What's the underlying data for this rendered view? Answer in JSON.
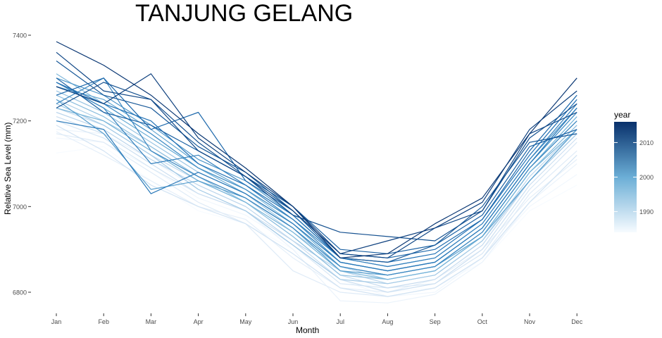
{
  "chart_data": {
    "type": "line",
    "title": "TANJUNG GELANG",
    "xlabel": "Month",
    "ylabel": "Relative Sea Level (mm)",
    "categories": [
      "Jan",
      "Feb",
      "Mar",
      "Apr",
      "May",
      "Jun",
      "Jul",
      "Aug",
      "Sep",
      "Oct",
      "Nov",
      "Dec"
    ],
    "ylim": [
      6740,
      7415
    ],
    "yticks": [
      6800,
      7000,
      7200,
      7400
    ],
    "grid": false,
    "legend": {
      "title": "year",
      "type": "continuous-colorbar",
      "position": "right",
      "range": [
        1984,
        2016
      ],
      "ticks": [
        1990,
        2000,
        2010
      ],
      "color_low": "#f7fbff",
      "color_high": "#08306b"
    },
    "series": [
      {
        "year": 1984,
        "values": [
          7125,
          7140,
          7060,
          6990,
          6960,
          6900,
          6840,
          6800,
          6810,
          6870,
          6990,
          7050
        ]
      },
      {
        "year": 1985,
        "values": [
          7160,
          7150,
          7090,
          7020,
          6980,
          6910,
          6830,
          6790,
          6800,
          6880,
          7000,
          7075
        ]
      },
      {
        "year": 1986,
        "values": [
          7180,
          7170,
          7110,
          7040,
          6990,
          6900,
          6780,
          6775,
          6795,
          6870,
          7010,
          7100
        ]
      },
      {
        "year": 1987,
        "values": [
          7175,
          7120,
          7060,
          7000,
          6970,
          6880,
          6810,
          6800,
          6830,
          6900,
          7020,
          7110
        ]
      },
      {
        "year": 1988,
        "values": [
          7170,
          7150,
          7080,
          7010,
          6960,
          6850,
          6800,
          6790,
          6810,
          6880,
          7030,
          7130
        ]
      },
      {
        "year": 1989,
        "values": [
          7200,
          7160,
          7090,
          7030,
          6990,
          6910,
          6820,
          6810,
          6820,
          6890,
          7040,
          7150
        ]
      },
      {
        "year": 1990,
        "values": [
          7190,
          7130,
          7050,
          7000,
          6960,
          6890,
          6810,
          6790,
          6810,
          6880,
          7010,
          7120
        ]
      },
      {
        "year": 1991,
        "values": [
          7210,
          7170,
          7100,
          7030,
          6990,
          6920,
          6830,
          6800,
          6820,
          6900,
          7050,
          7160
        ]
      },
      {
        "year": 1992,
        "values": [
          7230,
          7190,
          7120,
          7060,
          7010,
          6930,
          6840,
          6810,
          6830,
          6910,
          7060,
          7170
        ]
      },
      {
        "year": 1993,
        "values": [
          7220,
          7180,
          7110,
          7050,
          7000,
          6920,
          6850,
          6820,
          6840,
          6920,
          7070,
          7180
        ]
      },
      {
        "year": 1994,
        "values": [
          7250,
          7200,
          7140,
          7070,
          7020,
          6940,
          6860,
          6830,
          6850,
          6930,
          7080,
          7190
        ]
      },
      {
        "year": 1995,
        "values": [
          7240,
          7190,
          7120,
          7040,
          6990,
          6910,
          6830,
          6820,
          6840,
          6920,
          7060,
          7170
        ]
      },
      {
        "year": 1996,
        "values": [
          7270,
          7220,
          7150,
          7080,
          7030,
          6950,
          6860,
          6840,
          6860,
          6940,
          7090,
          7200
        ]
      },
      {
        "year": 1997,
        "values": [
          7260,
          7210,
          7140,
          7070,
          7010,
          6930,
          6840,
          6830,
          6850,
          6930,
          7080,
          7190
        ]
      },
      {
        "year": 1998,
        "values": [
          7310,
          7240,
          7170,
          7090,
          7040,
          6960,
          6870,
          6850,
          6870,
          6950,
          7100,
          7230
        ]
      },
      {
        "year": 1999,
        "values": [
          7230,
          7200,
          7130,
          7060,
          7010,
          6940,
          6850,
          6830,
          6850,
          6930,
          7080,
          7180
        ]
      },
      {
        "year": 2000,
        "values": [
          7290,
          7230,
          7160,
          7090,
          7030,
          6960,
          6860,
          6840,
          6860,
          6940,
          7090,
          7210
        ]
      },
      {
        "year": 2001,
        "values": [
          7280,
          7250,
          7180,
          7100,
          7040,
          6970,
          6870,
          6850,
          6870,
          6950,
          7100,
          7220
        ]
      },
      {
        "year": 2002,
        "values": [
          7250,
          7170,
          7040,
          7060,
          7020,
          6950,
          6850,
          6840,
          6860,
          6930,
          7060,
          7180
        ]
      },
      {
        "year": 2003,
        "values": [
          7300,
          7260,
          7190,
          7110,
          7060,
          6980,
          6880,
          6860,
          6880,
          6960,
          7110,
          7230
        ]
      },
      {
        "year": 2004,
        "values": [
          7280,
          7240,
          7170,
          7090,
          7040,
          6970,
          6870,
          6850,
          6870,
          6950,
          7100,
          7220
        ]
      },
      {
        "year": 2005,
        "values": [
          7240,
          7300,
          7130,
          7070,
          7020,
          6950,
          6860,
          6840,
          6860,
          6940,
          7090,
          7200
        ]
      },
      {
        "year": 2006,
        "values": [
          7290,
          7230,
          7100,
          7120,
          7050,
          6970,
          6880,
          6860,
          6880,
          6960,
          7110,
          7240
        ]
      },
      {
        "year": 2007,
        "values": [
          7200,
          7180,
          7030,
          7080,
          7030,
          6960,
          6870,
          6850,
          6870,
          6950,
          7100,
          7230
        ]
      },
      {
        "year": 2008,
        "values": [
          7290,
          7240,
          7200,
          7100,
          7050,
          6980,
          6880,
          6870,
          6890,
          6970,
          7120,
          7250
        ]
      },
      {
        "year": 2009,
        "values": [
          7260,
          7300,
          7180,
          7220,
          7060,
          6990,
          6890,
          6880,
          6900,
          6970,
          7130,
          7260
        ]
      },
      {
        "year": 2010,
        "values": [
          7300,
          7220,
          7190,
          7130,
          7070,
          7000,
          6900,
          6890,
          6910,
          6980,
          7140,
          7180
        ]
      },
      {
        "year": 2011,
        "values": [
          7340,
          7260,
          7230,
          7140,
          7080,
          6990,
          6880,
          6870,
          6910,
          7000,
          7150,
          7170
        ]
      },
      {
        "year": 2012,
        "values": [
          7230,
          7290,
          7250,
          7150,
          7070,
          6980,
          6940,
          6930,
          6920,
          6990,
          7160,
          7240
        ]
      },
      {
        "year": 2013,
        "values": [
          7360,
          7270,
          7250,
          7130,
          7070,
          6990,
          6890,
          6880,
          6950,
          6990,
          7170,
          7220
        ]
      },
      {
        "year": 2014,
        "values": [
          7280,
          7240,
          7310,
          7160,
          7080,
          7000,
          6890,
          6920,
          6950,
          7010,
          7180,
          7270
        ]
      },
      {
        "year": 2015,
        "values": [
          7385,
          7330,
          7260,
          7170,
          7090,
          7000,
          6880,
          6890,
          6960,
          7020,
          7170,
          7300
        ]
      }
    ]
  }
}
